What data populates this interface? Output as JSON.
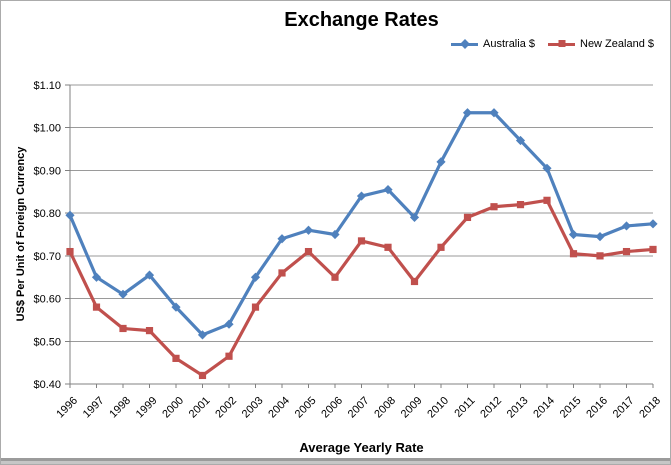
{
  "chart_data": {
    "type": "line",
    "title": "Exchange Rates",
    "xlabel": "Average Yearly Rate",
    "ylabel": "US$ Per Unit of Foreign Currency",
    "categories": [
      "1996",
      "1997",
      "1998",
      "1999",
      "2000",
      "2001",
      "2002",
      "2003",
      "2004",
      "2005",
      "2006",
      "2007",
      "2008",
      "2009",
      "2010",
      "2011",
      "2012",
      "2013",
      "2014",
      "2015",
      "2016",
      "2017",
      "2018"
    ],
    "series": [
      {
        "name": "Australia $",
        "color": "#4F81BD",
        "marker": "diamond",
        "values": [
          0.795,
          0.65,
          0.61,
          0.655,
          0.58,
          0.515,
          0.54,
          0.65,
          0.74,
          0.76,
          0.75,
          0.84,
          0.855,
          0.79,
          0.92,
          1.035,
          1.035,
          0.97,
          0.905,
          0.75,
          0.745,
          0.77,
          0.775
        ]
      },
      {
        "name": "New Zealand $",
        "color": "#C0504D",
        "marker": "square",
        "values": [
          0.71,
          0.58,
          0.53,
          0.525,
          0.46,
          0.42,
          0.465,
          0.58,
          0.66,
          0.71,
          0.65,
          0.735,
          0.72,
          0.64,
          0.72,
          0.79,
          0.815,
          0.82,
          0.83,
          0.705,
          0.7,
          0.71,
          0.715
        ]
      }
    ],
    "ylim": [
      0.4,
      1.1
    ],
    "y_ticks": [
      0.4,
      0.5,
      0.6,
      0.7,
      0.8,
      0.9,
      1.0,
      1.1
    ],
    "y_tick_labels": [
      "$0.40",
      "$0.50",
      "$0.60",
      "$0.70",
      "$0.80",
      "$0.90",
      "$1.00",
      "$1.10"
    ],
    "grid": "horizontal",
    "legend_position": "top-right"
  },
  "colors": {
    "gridline": "#9a9a9a",
    "axis": "#808080",
    "text": "#000000",
    "background": "#ffffff",
    "frame_border": "#ababab"
  }
}
